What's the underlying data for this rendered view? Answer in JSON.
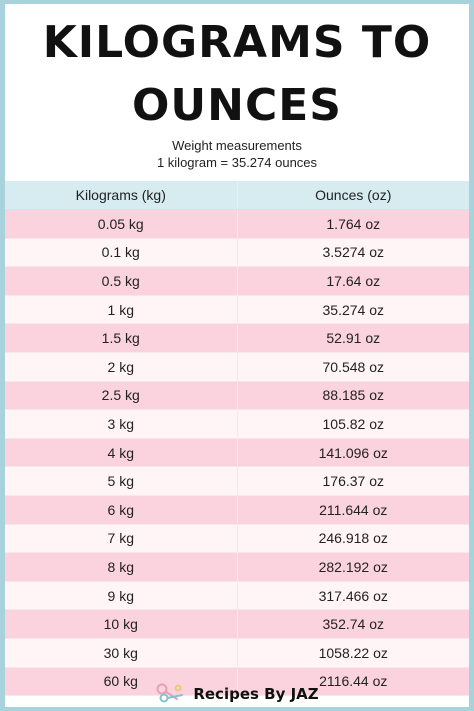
{
  "title_line1": "KILOGRAMS TO",
  "title_line2": "OUNCES",
  "subtitle_line1": "Weight measurements",
  "subtitle_line2": "1 kilogram =  35.274 ounces",
  "table": {
    "headers": [
      "Kilograms (kg)",
      "Ounces (oz)"
    ],
    "rows": [
      [
        "0.05 kg",
        "1.764 oz"
      ],
      [
        "0.1 kg",
        "3.5274 oz"
      ],
      [
        "0.5 kg",
        "17.64 oz"
      ],
      [
        "1 kg",
        "35.274 oz"
      ],
      [
        "1.5 kg",
        "52.91 oz"
      ],
      [
        "2 kg",
        "70.548 oz"
      ],
      [
        "2.5 kg",
        "88.185 oz"
      ],
      [
        "3 kg",
        "105.82 oz"
      ],
      [
        "4 kg",
        "141.096 oz"
      ],
      [
        "5 kg",
        "176.37 oz"
      ],
      [
        "6 kg",
        "211.644 oz"
      ],
      [
        "7 kg",
        "246.918 oz"
      ],
      [
        "8 kg",
        "282.192 oz"
      ],
      [
        "9 kg",
        "317.466 oz"
      ],
      [
        "10 kg",
        "352.74 oz"
      ],
      [
        "30 kg",
        "1058.22 oz"
      ],
      [
        "60 kg",
        "2116.44 oz"
      ]
    ]
  },
  "footer": {
    "brand": "Recipes By JAZ",
    "logo_icon": "measuring-spoons-icon"
  },
  "colors": {
    "border": "#a9d3dc",
    "header_bg": "#d6ecf0",
    "row_pink": "#fbd3de",
    "row_light": "#fff5f7"
  }
}
